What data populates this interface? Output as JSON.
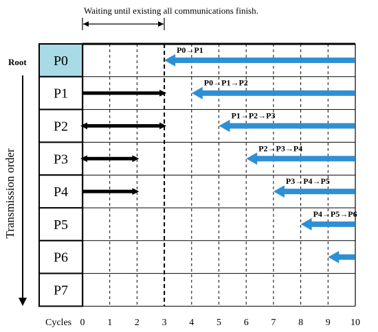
{
  "annotation": "Waiting until existing all communications finish.",
  "root_label": "Root",
  "axis_label": "Transmission order",
  "cycles_label": "Cycles",
  "ticks": [
    "0",
    "1",
    "2",
    "3",
    "4",
    "5",
    "6",
    "7",
    "8",
    "9",
    "10"
  ],
  "processes": [
    "P0",
    "P1",
    "P2",
    "P3",
    "P4",
    "P5",
    "P6",
    "P7"
  ],
  "root_index": 0,
  "wait_until_cycle": 3,
  "colors": {
    "root_fill": "#a9dbe6",
    "blue_arrow": "#2f8fd5",
    "black_arrow": "#000000",
    "grid": "#000000"
  },
  "existing_transfers": [
    {
      "row": 1,
      "start": 0,
      "end": 3,
      "heads": "end"
    },
    {
      "row": 2,
      "start": 0,
      "end": 3,
      "heads": "both"
    },
    {
      "row": 3,
      "start": 0,
      "end": 2,
      "heads": "both"
    },
    {
      "row": 4,
      "start": 0,
      "end": 2,
      "heads": "end"
    }
  ],
  "forward_transfers": [
    {
      "row": 0,
      "head_cycle": 3,
      "label": "P0→P1"
    },
    {
      "row": 1,
      "head_cycle": 4,
      "label": "P0→P1→P2"
    },
    {
      "row": 2,
      "head_cycle": 5,
      "label": "P1→P2→P3"
    },
    {
      "row": 3,
      "head_cycle": 6,
      "label": "P2→P3→P4"
    },
    {
      "row": 4,
      "head_cycle": 7,
      "label": "P3→P4→P5"
    },
    {
      "row": 5,
      "head_cycle": 8,
      "label": "P4→P5→P6"
    },
    {
      "row": 6,
      "head_cycle": 9,
      "label": ""
    }
  ]
}
